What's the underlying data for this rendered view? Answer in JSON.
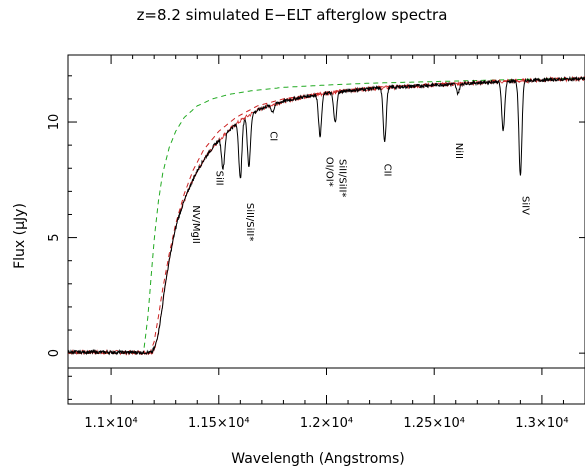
{
  "chart_data": {
    "type": "line",
    "title": "z=8.2 simulated E−ELT afterglow spectra",
    "xlabel": "Wavelength (Angstroms)",
    "ylabel": "Flux (μJy)",
    "xlim": [
      10800,
      13200
    ],
    "ylim": [
      -2.2,
      12.9
    ],
    "x_ticks": [
      {
        "value": 11000,
        "label": "1.1×10⁴"
      },
      {
        "value": 11500,
        "label": "1.15×10⁴"
      },
      {
        "value": 12000,
        "label": "1.2×10⁴"
      },
      {
        "value": 12500,
        "label": "1.25×10⁴"
      },
      {
        "value": 13000,
        "label": "1.3×10⁴"
      }
    ],
    "y_ticks": [
      {
        "value": 0,
        "label": "0"
      },
      {
        "value": 5,
        "label": "5"
      },
      {
        "value": 10,
        "label": "10"
      }
    ],
    "series": [
      {
        "style": "solid",
        "color": "#000000",
        "x": [
          10800,
          11150,
          11190,
          11205,
          11220,
          11235,
          11250,
          11270,
          11290,
          11310,
          11340,
          11370,
          11400,
          11440,
          11480,
          11520,
          11560,
          11600,
          11650,
          11700,
          11800,
          11900,
          12000,
          12100,
          12200,
          12300,
          12400,
          12500,
          12600,
          12700,
          12800,
          12900,
          13000,
          13100,
          13200
        ],
        "y": [
          0.05,
          0.03,
          0.03,
          0.3,
          0.9,
          1.8,
          2.9,
          4.0,
          5.0,
          5.8,
          6.6,
          7.3,
          7.9,
          8.5,
          9.0,
          9.4,
          9.75,
          10.05,
          10.35,
          10.6,
          10.9,
          11.1,
          11.25,
          11.35,
          11.45,
          11.5,
          11.55,
          11.6,
          11.65,
          11.7,
          11.75,
          11.78,
          11.82,
          11.85,
          11.88
        ]
      },
      {
        "style": "dashed",
        "color": "#22aa22",
        "x": [
          10800,
          11150,
          11170,
          11185,
          11200,
          11220,
          11240,
          11270,
          11300,
          11340,
          11400,
          11470,
          11550,
          11650,
          11800,
          12000,
          12200,
          12500,
          12800,
          13200
        ],
        "y": [
          0.0,
          0.0,
          1.5,
          3.2,
          4.9,
          6.6,
          7.8,
          8.9,
          9.6,
          10.2,
          10.7,
          11.0,
          11.2,
          11.35,
          11.5,
          11.6,
          11.68,
          11.75,
          11.82,
          11.9
        ]
      },
      {
        "style": "dashed",
        "color": "#cc2222",
        "x": [
          10800,
          11180,
          11200,
          11220,
          11240,
          11270,
          11300,
          11340,
          11380,
          11430,
          11500,
          11580,
          11680,
          11800,
          12000,
          12200,
          12500,
          12800,
          13200
        ],
        "y": [
          0.0,
          0.0,
          0.5,
          1.6,
          2.8,
          4.3,
          5.6,
          6.9,
          7.9,
          8.8,
          9.6,
          10.2,
          10.7,
          11.0,
          11.3,
          11.5,
          11.65,
          11.75,
          11.85
        ]
      }
    ],
    "absorption_lines": [
      {
        "x": 11520,
        "depth": 1.4
      },
      {
        "x": 11600,
        "depth": 2.5
      },
      {
        "x": 11640,
        "depth": 2.2
      },
      {
        "x": 11750,
        "depth": 0.3
      },
      {
        "x": 11970,
        "depth": 1.8
      },
      {
        "x": 12040,
        "depth": 1.3
      },
      {
        "x": 12270,
        "depth": 2.3
      },
      {
        "x": 12610,
        "depth": 0.4
      },
      {
        "x": 12820,
        "depth": 2.1
      },
      {
        "x": 12900,
        "depth": 4.1
      }
    ],
    "annotations": [
      {
        "text": "NV/MgII",
        "x": 11380,
        "y": 6.4
      },
      {
        "text": "SiII",
        "x": 11490,
        "y": 7.9
      },
      {
        "text": "SiII/SiII*",
        "x": 11630,
        "y": 6.5
      },
      {
        "text": "CI",
        "x": 11740,
        "y": 9.6
      },
      {
        "text": "OI/OI*",
        "x": 12000,
        "y": 8.5
      },
      {
        "text": "SiII/SiII*",
        "x": 12060,
        "y": 8.4
      },
      {
        "text": "CII",
        "x": 12270,
        "y": 8.2
      },
      {
        "text": "NiII",
        "x": 12600,
        "y": 9.1
      },
      {
        "text": "SiIV",
        "x": 12910,
        "y": 6.8
      }
    ]
  }
}
